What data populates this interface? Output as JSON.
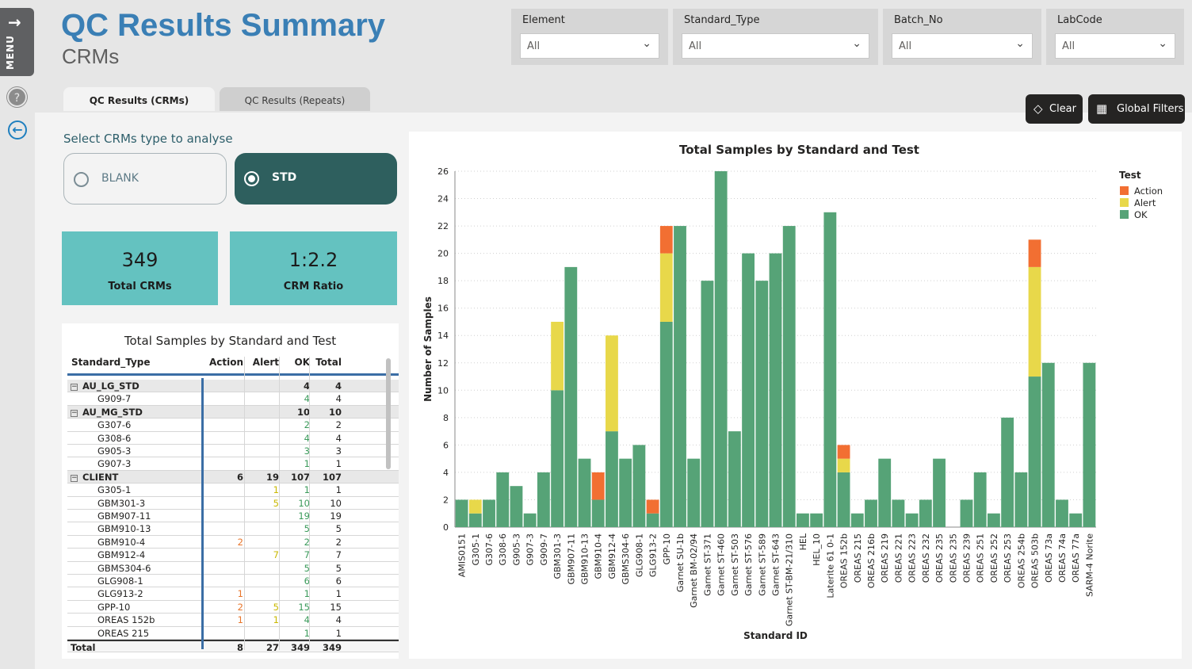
{
  "header": {
    "title": "QC Results Summary",
    "subtitle": "CRMs"
  },
  "rail": {
    "menu_label": "MENU"
  },
  "slicers": [
    {
      "label": "Element",
      "value": "All"
    },
    {
      "label": "Standard_Type",
      "value": "All"
    },
    {
      "label": "Batch_No",
      "value": "All"
    },
    {
      "label": "LabCode",
      "value": "All"
    }
  ],
  "tabs": [
    {
      "label": "QC Results (CRMs)",
      "active": true
    },
    {
      "label": "QC Results (Repeats)",
      "active": false
    }
  ],
  "buttons": {
    "clear": "Clear",
    "global_filters": "Global Filters"
  },
  "selector": {
    "label": "Select CRMs type to analyse",
    "options": [
      {
        "label": "BLANK",
        "selected": false
      },
      {
        "label": "STD",
        "selected": true
      }
    ]
  },
  "kpis": [
    {
      "value": "349",
      "label": "Total CRMs"
    },
    {
      "value": "1:2.2",
      "label": "CRM Ratio"
    }
  ],
  "matrix": {
    "title": "Total Samples by Standard and Test",
    "headers": [
      "Standard_Type",
      "Action",
      "Alert",
      "OK",
      "Total"
    ],
    "rows": [
      {
        "type": "group",
        "name": "AU_LG_STD",
        "action": "",
        "alert": "",
        "ok": "4",
        "total": "4"
      },
      {
        "type": "item",
        "name": "G909-7",
        "action": "",
        "alert": "",
        "ok": "4",
        "total": "4"
      },
      {
        "type": "group",
        "name": "AU_MG_STD",
        "action": "",
        "alert": "",
        "ok": "10",
        "total": "10"
      },
      {
        "type": "item",
        "name": "G307-6",
        "action": "",
        "alert": "",
        "ok": "2",
        "total": "2"
      },
      {
        "type": "item",
        "name": "G308-6",
        "action": "",
        "alert": "",
        "ok": "4",
        "total": "4"
      },
      {
        "type": "item",
        "name": "G905-3",
        "action": "",
        "alert": "",
        "ok": "3",
        "total": "3"
      },
      {
        "type": "item",
        "name": "G907-3",
        "action": "",
        "alert": "",
        "ok": "1",
        "total": "1"
      },
      {
        "type": "group",
        "name": "CLIENT",
        "action": "6",
        "alert": "19",
        "ok": "107",
        "total": "107"
      },
      {
        "type": "item",
        "name": "G305-1",
        "action": "",
        "alert": "1",
        "ok": "1",
        "total": "1"
      },
      {
        "type": "item",
        "name": "GBM301-3",
        "action": "",
        "alert": "5",
        "ok": "10",
        "total": "10"
      },
      {
        "type": "item",
        "name": "GBM907-11",
        "action": "",
        "alert": "",
        "ok": "19",
        "total": "19"
      },
      {
        "type": "item",
        "name": "GBM910-13",
        "action": "",
        "alert": "",
        "ok": "5",
        "total": "5"
      },
      {
        "type": "item",
        "name": "GBM910-4",
        "action": "2",
        "alert": "",
        "ok": "2",
        "total": "2"
      },
      {
        "type": "item",
        "name": "GBM912-4",
        "action": "",
        "alert": "7",
        "ok": "7",
        "total": "7"
      },
      {
        "type": "item",
        "name": "GBMS304-6",
        "action": "",
        "alert": "",
        "ok": "5",
        "total": "5"
      },
      {
        "type": "item",
        "name": "GLG908-1",
        "action": "",
        "alert": "",
        "ok": "6",
        "total": "6"
      },
      {
        "type": "item",
        "name": "GLG913-2",
        "action": "1",
        "alert": "",
        "ok": "1",
        "total": "1"
      },
      {
        "type": "item",
        "name": "GPP-10",
        "action": "2",
        "alert": "5",
        "ok": "15",
        "total": "15"
      },
      {
        "type": "item",
        "name": "OREAS 152b",
        "action": "1",
        "alert": "1",
        "ok": "4",
        "total": "4"
      },
      {
        "type": "item",
        "name": "OREAS 215",
        "action": "",
        "alert": "",
        "ok": "1",
        "total": "1"
      }
    ],
    "total": {
      "name": "Total",
      "action": "8",
      "alert": "27",
      "ok": "349",
      "total": "349"
    }
  },
  "chart_data": {
    "type": "bar",
    "stacked": true,
    "title": "Total Samples by Standard and Test",
    "xlabel": "Standard ID",
    "ylabel": "Number of Samples",
    "ylim": [
      0,
      26
    ],
    "yticks": [
      0,
      2,
      4,
      6,
      8,
      10,
      12,
      14,
      16,
      18,
      20,
      22,
      24,
      26
    ],
    "grid": true,
    "legend": {
      "title": "Test",
      "position": "top-right"
    },
    "categories": [
      "AMIS0151",
      "G305-1",
      "G307-6",
      "G308-6",
      "G905-3",
      "G907-3",
      "G909-7",
      "GBM301-3",
      "GBM907-11",
      "GBM910-13",
      "GBM910-4",
      "GBM912-4",
      "GBMS304-6",
      "GLG908-1",
      "GLG913-2",
      "GPP-10",
      "Garnet SU-1b",
      "Garnet BM-02/94",
      "Garnet ST-371",
      "Garnet ST-460",
      "Garnet ST-503",
      "Garnet ST-576",
      "Garnet ST-589",
      "Garnet ST-643",
      "Garnet ST-BM-21/310",
      "HEL",
      "HEL_10",
      "Laterite 61 0-1",
      "OREAS 152b",
      "OREAS 215",
      "OREAS 216b",
      "OREAS 219",
      "OREAS 221",
      "OREAS 223",
      "OREAS 232",
      "OREAS 235",
      "OREAS 235",
      "OREAS 239",
      "OREAS 251",
      "OREAS 252",
      "OREAS 253",
      "OREAS 254b",
      "OREAS 503b",
      "OREAS 73a",
      "OREAS 74a",
      "OREAS 77a",
      "SARM-4 Norite"
    ],
    "series": [
      {
        "name": "OK",
        "color": "#56a377",
        "values": [
          2,
          1,
          2,
          4,
          3,
          1,
          4,
          10,
          19,
          5,
          2,
          7,
          5,
          6,
          1,
          15,
          22,
          5,
          18,
          26,
          7,
          20,
          18,
          20,
          22,
          1,
          1,
          23,
          4,
          1,
          2,
          5,
          2,
          1,
          2,
          5,
          0,
          2,
          4,
          1,
          8,
          4,
          11,
          12,
          2,
          1,
          12
        ]
      },
      {
        "name": "Alert",
        "color": "#e8d84a",
        "values": [
          0,
          1,
          0,
          0,
          0,
          0,
          0,
          5,
          0,
          0,
          0,
          7,
          0,
          0,
          0,
          5,
          0,
          0,
          0,
          0,
          0,
          0,
          0,
          0,
          0,
          0,
          0,
          0,
          1,
          0,
          0,
          0,
          0,
          0,
          0,
          0,
          0,
          0,
          0,
          0,
          0,
          0,
          8,
          0,
          0,
          0,
          0
        ]
      },
      {
        "name": "Action",
        "color": "#f26f32",
        "values": [
          0,
          0,
          0,
          0,
          0,
          0,
          0,
          0,
          0,
          0,
          2,
          0,
          0,
          0,
          1,
          2,
          0,
          0,
          0,
          0,
          0,
          0,
          0,
          0,
          0,
          0,
          0,
          0,
          1,
          0,
          0,
          0,
          0,
          0,
          0,
          0,
          0,
          0,
          0,
          0,
          0,
          0,
          2,
          0,
          0,
          0,
          0
        ]
      }
    ]
  }
}
